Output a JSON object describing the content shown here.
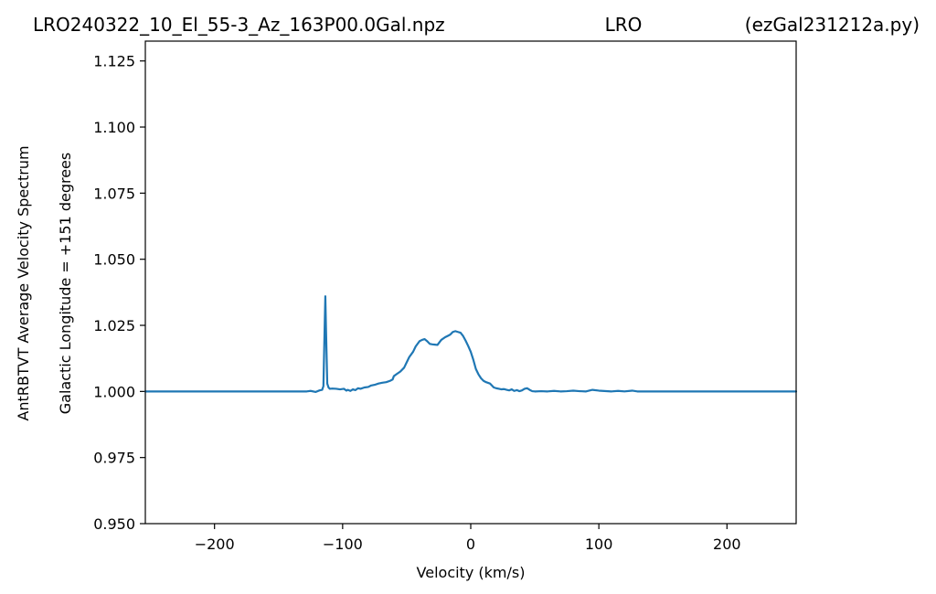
{
  "chart_data": {
    "type": "line",
    "title_left": "LRO240322_10_El_55-3_Az_163P00.0Gal.npz",
    "title_center": "LRO",
    "title_right": "(ezGal231212a.py)",
    "xlabel": "Velocity (km/s)",
    "ylabel_outer": "AntRBTVT Average Velocity Spectrum",
    "ylabel_inner": "Galactic Longitude = +151 degrees",
    "xlim": [
      -254,
      254
    ],
    "ylim": [
      0.95,
      1.1325
    ],
    "xticks": [
      -200,
      -100,
      0,
      100,
      200
    ],
    "xtick_labels": [
      "−200",
      "−100",
      "0",
      "100",
      "200"
    ],
    "yticks": [
      0.95,
      0.975,
      1.0,
      1.025,
      1.05,
      1.075,
      1.1,
      1.125
    ],
    "ytick_labels": [
      "0.950",
      "0.975",
      "1.000",
      "1.025",
      "1.050",
      "1.075",
      "1.100",
      "1.125"
    ],
    "line_color": "#1f77b4",
    "grid": false,
    "series": [
      {
        "x": [
          -254,
          -150,
          -128,
          -125,
          -121,
          -118,
          -116,
          -115,
          -114,
          -113.5,
          -113,
          -112,
          -111,
          -110,
          -108,
          -105,
          -102,
          -99,
          -97,
          -96,
          -94,
          -92,
          -90,
          -88,
          -86,
          -83,
          -80,
          -78,
          -75,
          -72,
          -69,
          -66,
          -63,
          -61,
          -60,
          -58,
          -55,
          -52,
          -50,
          -48,
          -45,
          -43,
          -40,
          -38,
          -36,
          -34,
          -32,
          -30,
          -28,
          -26,
          -23,
          -20,
          -18,
          -16,
          -14,
          -12,
          -10,
          -8,
          -6,
          -4,
          -2,
          0,
          2,
          4,
          6,
          8,
          10,
          12,
          15,
          18,
          20,
          22,
          24,
          26,
          28,
          30,
          32,
          34,
          36,
          38,
          40,
          42,
          44,
          46,
          48,
          50,
          55,
          60,
          65,
          70,
          75,
          80,
          85,
          90,
          95,
          100,
          110,
          115,
          120,
          126,
          130,
          140,
          254
        ],
        "y": [
          1.0,
          1.0,
          1.0,
          1.0002,
          0.9998,
          1.0004,
          1.0006,
          1.002,
          1.025,
          1.036,
          1.024,
          1.003,
          1.0015,
          1.001,
          1.0011,
          1.001,
          1.0008,
          1.001,
          1.0003,
          1.0006,
          1.0002,
          1.0008,
          1.0005,
          1.0012,
          1.001,
          1.0015,
          1.0017,
          1.0022,
          1.0025,
          1.003,
          1.0033,
          1.0035,
          1.004,
          1.0045,
          1.0058,
          1.0065,
          1.0075,
          1.009,
          1.011,
          1.013,
          1.015,
          1.017,
          1.019,
          1.0195,
          1.0198,
          1.019,
          1.018,
          1.0178,
          1.0177,
          1.0176,
          1.0195,
          1.0205,
          1.021,
          1.0215,
          1.0225,
          1.0228,
          1.0225,
          1.0222,
          1.021,
          1.0192,
          1.0172,
          1.015,
          1.012,
          1.0085,
          1.0065,
          1.005,
          1.004,
          1.0035,
          1.003,
          1.0015,
          1.0012,
          1.001,
          1.0008,
          1.0009,
          1.0006,
          1.0004,
          1.0008,
          1.0002,
          1.0005,
          1.0001,
          1.0004,
          1.001,
          1.0012,
          1.0006,
          1.0001,
          1.0,
          1.0001,
          1.0,
          1.0002,
          1.0,
          1.0001,
          1.0003,
          1.0001,
          1.0,
          1.0006,
          1.0003,
          1.0,
          1.0002,
          1.0,
          1.0003,
          1.0,
          1.0,
          1.0
        ]
      }
    ]
  }
}
